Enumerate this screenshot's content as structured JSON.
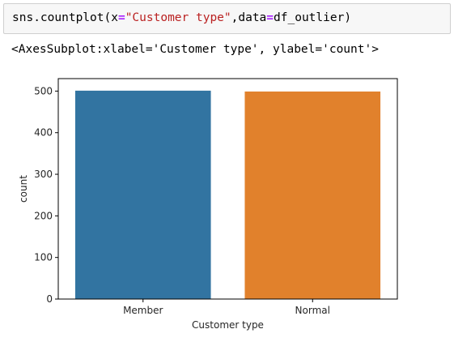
{
  "code_cell": {
    "fn": "sns.countplot(",
    "kw1": "x",
    "eq1": "=",
    "str1": "\"Customer type\"",
    "comma_kw2": ",data",
    "eq2": "=",
    "arg2": "df_outlier)"
  },
  "output": {
    "text": "<AxesSubplot:xlabel='Customer type', ylabel='count'>"
  },
  "chart_data": {
    "type": "bar",
    "categories": [
      "Member",
      "Normal"
    ],
    "values": [
      501,
      499
    ],
    "colors": [
      "#3274a1",
      "#e1812c"
    ],
    "xlabel": "Customer type",
    "ylabel": "count",
    "ylim": [
      0,
      530
    ],
    "yticks": [
      "0",
      "100",
      "200",
      "300",
      "400",
      "500"
    ],
    "grid": false
  }
}
